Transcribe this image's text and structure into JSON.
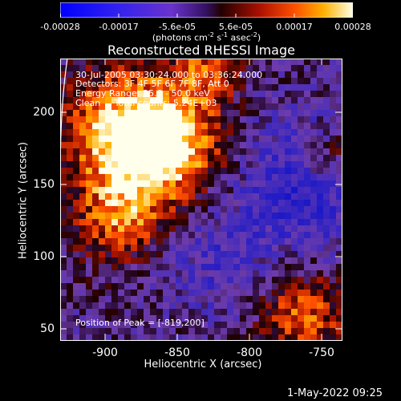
{
  "colorbar": {
    "ticks": [
      "-0.00028",
      "-0.00017",
      "-5.6e-05",
      "5.6e-05",
      "0.00017",
      "0.00028"
    ],
    "unit_main": "(photons cm",
    "unit_e1": "-2",
    "unit_s": " s",
    "unit_e2": "-1",
    "unit_asec": " asec",
    "unit_e3": "-2",
    "unit_close": ")"
  },
  "plot": {
    "title": "Reconstructed RHESSI Image",
    "xlabel": "Heliocentric X (arcsec)",
    "ylabel": "Heliocentric Y (arcsec)",
    "xticks": [
      "-900",
      "-850",
      "-800",
      "-750"
    ],
    "yticks": [
      "200",
      "150",
      "100",
      "50"
    ],
    "annotations": {
      "time_range": "30-Jul-2005 03:30:24.000 to 03:36:24.000",
      "detectors": "Detectors: 3F 4F 5F 6F 7F 8F, Att 0",
      "energy": "Energy Range: 25.0 - 50.0 keV",
      "clean": "Clean     Total counts: 5.24E+03",
      "peak": "Position of Peak = [-819,200]"
    }
  },
  "timestamp": "1-May-2022 09:25",
  "colors": {
    "background": "#000000",
    "text": "#ffffff",
    "limb": "#ffffff"
  }
}
